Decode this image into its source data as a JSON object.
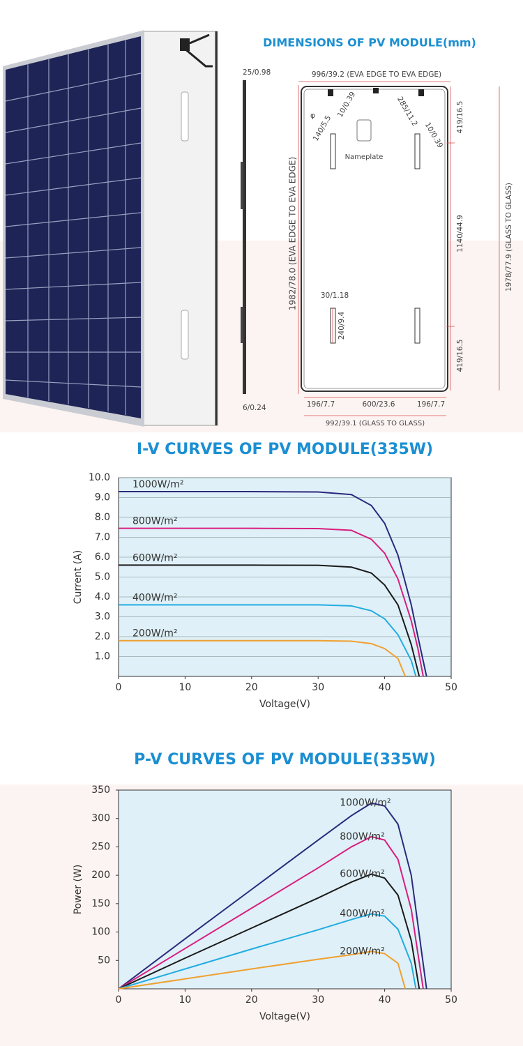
{
  "diagram": {
    "title": "DIMENSIONS OF PV MODULE(mm)",
    "dimensions": [
      "25/0.98",
      "6/0.24",
      "996/39.2 (EVA EDGE TO EVA EDGE)",
      "φ",
      "140/5.5",
      "10/0.39",
      "285/11.2",
      "10/0.39",
      "Nameplate",
      "419/16.5",
      "1140/44.9",
      "419/16.5",
      "1978/77.9 (GLASS TO GLASS)",
      "1982/78.0 (EVA EDGE TO EVA EDGE)",
      "30/1.18",
      "240/9.4",
      "196/7.7",
      "600/23.6",
      "196/7.7",
      "992/39.1 (GLASS TO GLASS)"
    ]
  },
  "chart_data": [
    {
      "type": "line",
      "title": "I-V CURVES OF PV MODULE(335W)",
      "x_label": "Voltage(V)",
      "y_label": "Current (A)",
      "xlim": [
        0,
        50
      ],
      "xticks": [
        0,
        10,
        20,
        30,
        40,
        50
      ],
      "ylim": [
        0,
        10
      ],
      "yticks": [
        {
          "value": 1,
          "label": "1.0"
        },
        {
          "value": 2,
          "label": "2.0"
        },
        {
          "value": 3,
          "label": "3.0"
        },
        {
          "value": 4,
          "label": "4.0"
        },
        {
          "value": 5,
          "label": "5.0"
        },
        {
          "value": 6,
          "label": "6.0"
        },
        {
          "value": 7,
          "label": "7.0"
        },
        {
          "value": 8,
          "label": "8.0"
        },
        {
          "value": 9,
          "label": "9.0"
        },
        {
          "value": 10,
          "label": "10.0"
        }
      ],
      "grid": true,
      "series": [
        {
          "name": "1000W/m²",
          "color": "#2b2a7c",
          "x": [
            0,
            10,
            20,
            30,
            35,
            38,
            40,
            42,
            44,
            45,
            46.3
          ],
          "values": [
            9.3,
            9.3,
            9.3,
            9.28,
            9.15,
            8.6,
            7.7,
            6.1,
            3.6,
            2.0,
            0
          ]
        },
        {
          "name": "800W/m²",
          "color": "#d81f7e",
          "x": [
            0,
            10,
            20,
            30,
            35,
            38,
            40,
            42,
            44,
            45,
            45.8
          ],
          "values": [
            7.45,
            7.45,
            7.45,
            7.44,
            7.35,
            6.9,
            6.2,
            4.9,
            2.8,
            1.4,
            0
          ]
        },
        {
          "name": "600W/m²",
          "color": "#1a1a1a",
          "x": [
            0,
            10,
            20,
            30,
            35,
            38,
            40,
            42,
            44,
            45.2
          ],
          "values": [
            5.6,
            5.6,
            5.6,
            5.59,
            5.5,
            5.2,
            4.6,
            3.6,
            1.6,
            0
          ]
        },
        {
          "name": "400W/m²",
          "color": "#22ace0",
          "x": [
            0,
            10,
            20,
            30,
            35,
            38,
            40,
            42,
            44,
            44.7
          ],
          "values": [
            3.6,
            3.6,
            3.6,
            3.6,
            3.55,
            3.3,
            2.9,
            2.1,
            0.8,
            0
          ]
        },
        {
          "name": "200W/m²",
          "color": "#f0a030",
          "x": [
            0,
            10,
            20,
            30,
            35,
            38,
            40,
            42,
            43.1
          ],
          "values": [
            1.8,
            1.8,
            1.8,
            1.8,
            1.77,
            1.65,
            1.4,
            0.9,
            0
          ]
        }
      ]
    },
    {
      "type": "line",
      "title": "P-V CURVES OF PV MODULE(335W)",
      "x_label": "Voltage(V)",
      "y_label": "Power (W)",
      "xlim": [
        0,
        50
      ],
      "xticks": [
        0,
        10,
        20,
        30,
        40,
        50
      ],
      "ylim": [
        0,
        350
      ],
      "yticks": [
        50,
        100,
        150,
        200,
        250,
        300,
        350
      ],
      "grid": false,
      "series": [
        {
          "name": "1000W/m²",
          "color": "#2b2a7c",
          "x": [
            0,
            10,
            20,
            30,
            35,
            38,
            40,
            42,
            44,
            46.3
          ],
          "values": [
            0,
            88,
            175,
            262,
            305,
            327,
            322,
            290,
            200,
            0
          ]
        },
        {
          "name": "800W/m²",
          "color": "#d81f7e",
          "x": [
            0,
            10,
            20,
            30,
            35,
            38,
            40,
            42,
            44,
            45.8
          ],
          "values": [
            0,
            71,
            142,
            213,
            250,
            268,
            262,
            228,
            140,
            0
          ]
        },
        {
          "name": "600W/m²",
          "color": "#1a1a1a",
          "x": [
            0,
            10,
            20,
            30,
            35,
            38,
            40,
            42,
            44,
            45.2
          ],
          "values": [
            0,
            54,
            107,
            160,
            188,
            202,
            195,
            165,
            85,
            0
          ]
        },
        {
          "name": "400W/m²",
          "color": "#22ace0",
          "x": [
            0,
            10,
            20,
            30,
            35,
            38,
            40,
            42,
            44,
            44.7
          ],
          "values": [
            0,
            35,
            70,
            104,
            122,
            132,
            128,
            105,
            45,
            0
          ]
        },
        {
          "name": "200W/m²",
          "color": "#f0a030",
          "x": [
            0,
            10,
            20,
            30,
            35,
            38,
            40,
            42,
            43.1
          ],
          "values": [
            0,
            17.5,
            35,
            52,
            60,
            66,
            62,
            45,
            0
          ]
        }
      ]
    }
  ]
}
